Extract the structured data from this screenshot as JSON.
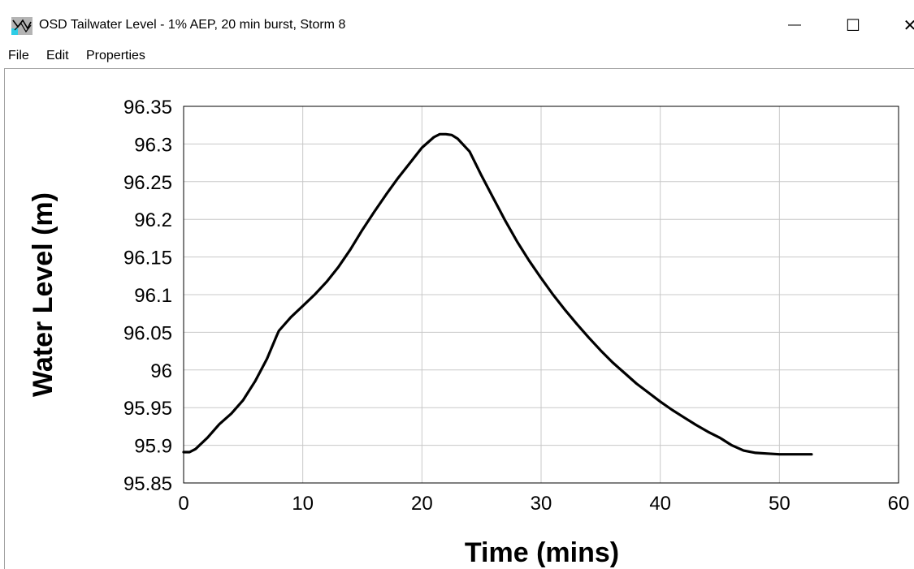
{
  "window": {
    "title": "OSD Tailwater Level - 1% AEP, 20 min burst, Storm 8",
    "icon": "graph-app-icon",
    "controls": {
      "minimize": "—",
      "maximize": "☐",
      "close": "✕"
    }
  },
  "menu": {
    "file": "File",
    "edit": "Edit",
    "properties": "Properties"
  },
  "chart_data": {
    "type": "line",
    "title": "",
    "xlabel": "Time (mins)",
    "ylabel": "Water Level (m)",
    "xlim": [
      0,
      60
    ],
    "ylim": [
      95.85,
      96.35
    ],
    "xticks": [
      "0",
      "10",
      "20",
      "30",
      "40",
      "50",
      "60"
    ],
    "yticks": [
      "95.85",
      "95.9",
      "95.95",
      "96",
      "96.05",
      "96.1",
      "96.15",
      "96.2",
      "96.25",
      "96.3",
      "96.35"
    ],
    "grid": true,
    "line_color": "#000000",
    "grid_color": "#c8c8c8",
    "series": [
      {
        "x": [
          0,
          0.5,
          1,
          2,
          3,
          4,
          5,
          6,
          7,
          7.8,
          8,
          9,
          10,
          11,
          12,
          13,
          14,
          15,
          16,
          17,
          18,
          19,
          20,
          21,
          21.5,
          22,
          22.5,
          23,
          24,
          25,
          26,
          27,
          28,
          29,
          30,
          31,
          32,
          33,
          34,
          35,
          36,
          37,
          38,
          39,
          40,
          41,
          42,
          43,
          44,
          45,
          46,
          47,
          48,
          49,
          50,
          51,
          52,
          52.7
        ],
        "y": [
          95.891,
          95.891,
          95.895,
          95.91,
          95.928,
          95.942,
          95.96,
          95.985,
          96.015,
          96.045,
          96.052,
          96.07,
          96.085,
          96.1,
          96.117,
          96.137,
          96.16,
          96.186,
          96.21,
          96.233,
          96.255,
          96.275,
          96.295,
          96.309,
          96.313,
          96.313,
          96.312,
          96.307,
          96.29,
          96.258,
          96.228,
          96.198,
          96.17,
          96.145,
          96.122,
          96.1,
          96.08,
          96.061,
          96.043,
          96.026,
          96.01,
          95.996,
          95.982,
          95.97,
          95.958,
          95.947,
          95.937,
          95.927,
          95.918,
          95.91,
          95.9,
          95.893,
          95.89,
          95.889,
          95.888,
          95.888,
          95.888,
          95.888
        ]
      }
    ]
  }
}
